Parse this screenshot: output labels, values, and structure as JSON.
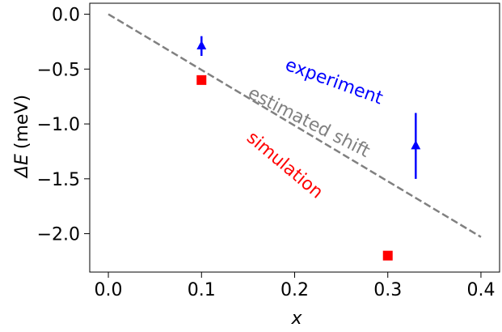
{
  "chart_data": {
    "type": "scatter",
    "xlabel": "x",
    "ylabel_prefix": "ΔE",
    "ylabel_unit": "(meV)",
    "xlim": [
      -0.02,
      0.42
    ],
    "ylim": [
      -2.35,
      0.1
    ],
    "x_ticks": [
      0.0,
      0.1,
      0.2,
      0.3,
      0.4
    ],
    "x_tick_labels": [
      "0.0",
      "0.1",
      "0.2",
      "0.3",
      "0.4"
    ],
    "y_ticks": [
      0.0,
      -0.5,
      -1.0,
      -1.5,
      -2.0
    ],
    "y_tick_labels": [
      "0.0",
      "−0.5",
      "−1.0",
      "−1.5",
      "−2.0"
    ],
    "grid": false,
    "legend": "none",
    "series": [
      {
        "key": "estimated_shift",
        "kind": "dashed-line",
        "color": "#808080",
        "x": [
          0.0,
          0.4
        ],
        "y": [
          0.0,
          -2.03
        ]
      },
      {
        "key": "experiment",
        "kind": "triangle-with-errorbars",
        "color": "#0000ff",
        "x": [
          0.1,
          0.33
        ],
        "y": [
          -0.29,
          -1.2
        ],
        "err_low": [
          -0.38,
          -1.5
        ],
        "err_high": [
          -0.2,
          -0.9
        ]
      },
      {
        "key": "simulation",
        "kind": "square",
        "color": "#ff0000",
        "x": [
          0.1,
          0.3
        ],
        "y": [
          -0.6,
          -2.2
        ]
      }
    ],
    "annotations": [
      {
        "key": "experiment",
        "text": "experiment",
        "color": "#0000ff",
        "x": 0.242,
        "y": -0.62,
        "rotation": 20
      },
      {
        "key": "estimated_shift",
        "text": "estimated shift",
        "color": "#808080",
        "x": 0.215,
        "y": -0.99,
        "rotation": 27
      },
      {
        "key": "simulation",
        "text": "simulation",
        "color": "#ff0000",
        "x": 0.189,
        "y": -1.38,
        "rotation": 40
      }
    ]
  }
}
